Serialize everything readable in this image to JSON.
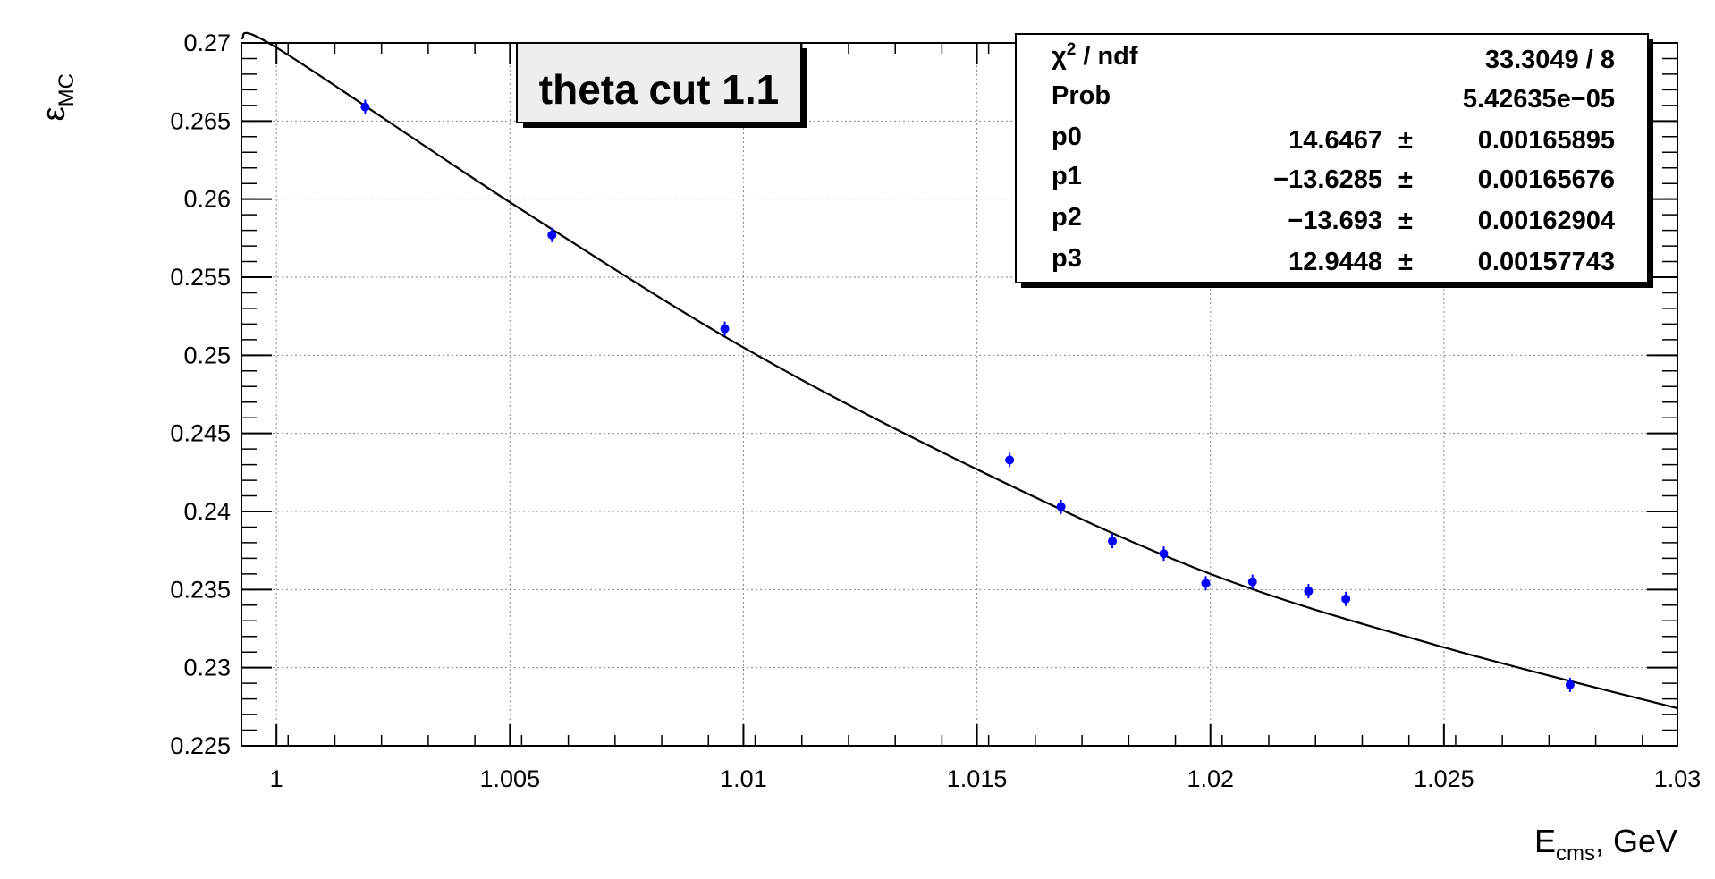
{
  "chart_data": {
    "type": "scatter",
    "title": "theta cut 1.1",
    "xlabel": {
      "main": "E",
      "sub": "cms",
      "suffix": ", GeV"
    },
    "ylabel": {
      "main": "ε",
      "sub": "MC"
    },
    "xlim": [
      0.99925,
      1.03
    ],
    "ylim": [
      0.225,
      0.27
    ],
    "x_ticks": [
      1,
      1.005,
      1.01,
      1.015,
      1.02,
      1.025,
      1.03
    ],
    "x_tick_labels": [
      "1",
      "1.005",
      "1.01",
      "1.015",
      "1.02",
      "1.025",
      "1.03"
    ],
    "y_ticks": [
      0.225,
      0.23,
      0.235,
      0.24,
      0.245,
      0.25,
      0.255,
      0.26,
      0.265,
      0.27
    ],
    "y_tick_labels": [
      "0.225",
      "0.23",
      "0.235",
      "0.24",
      "0.245",
      "0.25",
      "0.255",
      "0.26",
      "0.265",
      "0.27"
    ],
    "grid": true,
    "series": [
      {
        "kind": "points",
        "color": "#0000ff",
        "x": [
          1.0019,
          1.0059,
          1.0096,
          1.0157,
          1.0168,
          1.0179,
          1.019,
          1.0199,
          1.0209,
          1.0221,
          1.0229,
          1.0277
        ],
        "y": [
          0.2659,
          0.2577,
          0.2517,
          0.2433,
          0.2403,
          0.2381,
          0.2373,
          0.2354,
          0.2355,
          0.2349,
          0.2344,
          0.2289
        ]
      },
      {
        "kind": "fit",
        "color": "#000000",
        "x": [
          0.99925,
          1.0,
          1.005,
          1.01,
          1.015,
          1.02,
          1.025,
          1.03
        ],
        "y": [
          0.2703,
          0.2697,
          0.2598,
          0.2505,
          0.2427,
          0.236,
          0.2313,
          0.2274
        ]
      }
    ],
    "stats": [
      {
        "name": "χ",
        "sup": "2",
        "rest": " / ndf",
        "value": "33.3049 / 8"
      },
      {
        "name": "Prob",
        "value": "5.42635e−05"
      },
      {
        "name": "p0",
        "value": "14.6467",
        "err": "0.00165895"
      },
      {
        "name": "p1",
        "value": "−13.6285",
        "err": "0.00165676"
      },
      {
        "name": "p2",
        "value": "−13.693",
        "err": "0.00162904"
      },
      {
        "name": "p3",
        "value": "12.9448",
        "err": "0.00157743"
      }
    ]
  }
}
